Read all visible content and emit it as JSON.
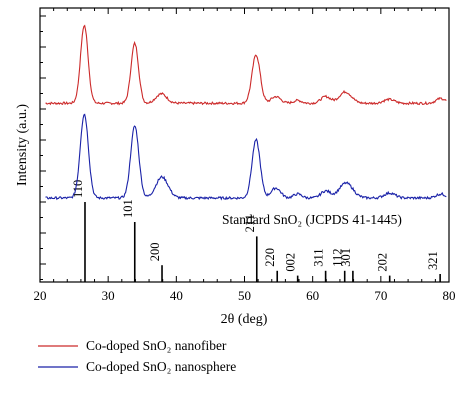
{
  "chart_data": {
    "type": "line",
    "xlabel": "2θ (deg)",
    "ylabel": "Intensity (a.u.)",
    "xlim": [
      20,
      80
    ],
    "x_ticks": [
      "20",
      "30",
      "40",
      "50",
      "60",
      "70",
      "80"
    ],
    "grid": false,
    "legend_position": "bottom-left, below plot",
    "reference": {
      "label": "Standard SnO₂ (JCPDS 41-1445)",
      "peaks": [
        {
          "hkl": "110",
          "two_theta": 26.6,
          "rel_intensity": 100
        },
        {
          "hkl": "101",
          "two_theta": 33.9,
          "rel_intensity": 75
        },
        {
          "hkl": "200",
          "two_theta": 37.9,
          "rel_intensity": 21
        },
        {
          "hkl": "211",
          "two_theta": 51.8,
          "rel_intensity": 57
        },
        {
          "hkl": "220",
          "two_theta": 54.8,
          "rel_intensity": 14
        },
        {
          "hkl": "002",
          "two_theta": 57.8,
          "rel_intensity": 8
        },
        {
          "hkl": "311",
          "two_theta": 61.9,
          "rel_intensity": 14
        },
        {
          "hkl": "112",
          "two_theta": 64.7,
          "rel_intensity": 14
        },
        {
          "hkl": "301",
          "two_theta": 65.9,
          "rel_intensity": 14
        },
        {
          "hkl": "202",
          "two_theta": 71.3,
          "rel_intensity": 8
        },
        {
          "hkl": "321",
          "two_theta": 78.7,
          "rel_intensity": 10
        }
      ]
    },
    "series": [
      {
        "name": "Co-doped SnO₂ nanofiber",
        "color": "#cc2a2a",
        "baseline": 0.05,
        "noise": 0.012,
        "peaks": [
          {
            "center": 26.5,
            "height": 0.82,
            "width": 0.55
          },
          {
            "center": 33.9,
            "height": 0.63,
            "width": 0.55
          },
          {
            "center": 37.8,
            "height": 0.1,
            "width": 0.8
          },
          {
            "center": 51.7,
            "height": 0.51,
            "width": 0.6
          },
          {
            "center": 54.6,
            "height": 0.07,
            "width": 0.7
          },
          {
            "center": 57.8,
            "height": 0.03,
            "width": 0.6
          },
          {
            "center": 61.9,
            "height": 0.07,
            "width": 0.7
          },
          {
            "center": 64.8,
            "height": 0.12,
            "width": 0.9
          },
          {
            "center": 71.2,
            "height": 0.04,
            "width": 0.8
          },
          {
            "center": 78.8,
            "height": 0.05,
            "width": 0.7
          }
        ]
      },
      {
        "name": "Co-doped SnO₂ nanosphere",
        "color": "#1a22a8",
        "baseline": 0.05,
        "noise": 0.012,
        "peaks": [
          {
            "center": 26.5,
            "height": 0.84,
            "width": 0.6
          },
          {
            "center": 33.9,
            "height": 0.72,
            "width": 0.6
          },
          {
            "center": 37.9,
            "height": 0.21,
            "width": 0.9
          },
          {
            "center": 51.7,
            "height": 0.58,
            "width": 0.6
          },
          {
            "center": 54.6,
            "height": 0.1,
            "width": 0.7
          },
          {
            "center": 57.8,
            "height": 0.04,
            "width": 0.6
          },
          {
            "center": 61.9,
            "height": 0.07,
            "width": 0.7
          },
          {
            "center": 64.9,
            "height": 0.15,
            "width": 1.0
          },
          {
            "center": 71.3,
            "height": 0.05,
            "width": 0.8
          },
          {
            "center": 78.8,
            "height": 0.04,
            "width": 0.7
          }
        ]
      }
    ]
  }
}
